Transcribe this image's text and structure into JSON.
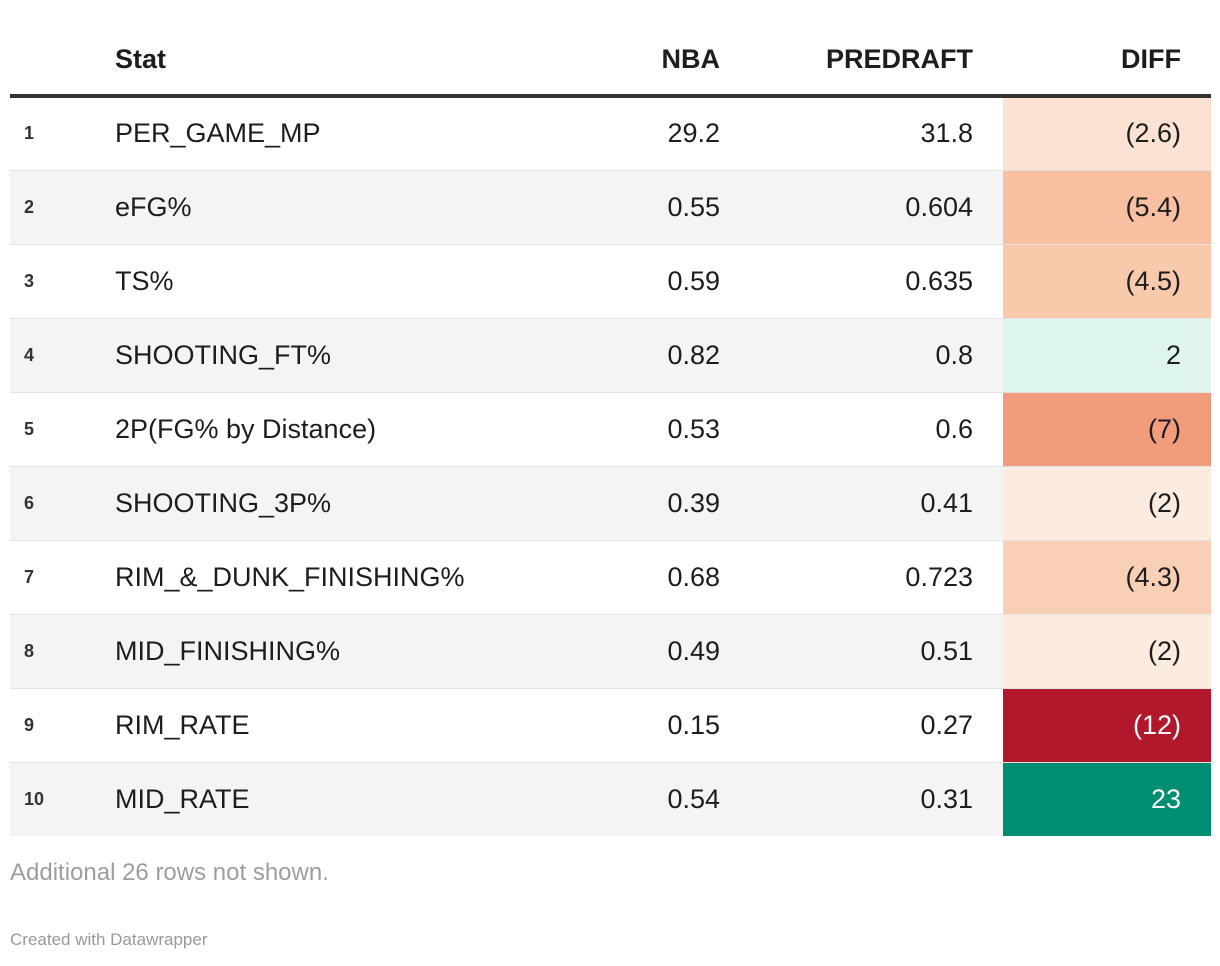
{
  "chart_data": {
    "type": "table",
    "columns": {
      "index": "",
      "stat": "Stat",
      "nba": "NBA",
      "predraft": "PREDRAFT",
      "diff": "DIFF"
    },
    "rows": [
      {
        "index": "1",
        "stat": "PER_GAME_MP",
        "nba": "29.2",
        "predraft": "31.8",
        "diff": "(2.6)",
        "diff_value": -2.6,
        "diff_bg": "#fbe2d2",
        "diff_fg": "#1d1d1d"
      },
      {
        "index": "2",
        "stat": "eFG%",
        "nba": "0.55",
        "predraft": "0.604",
        "diff": "(5.4)",
        "diff_value": -5.4,
        "diff_bg": "#f9bfa1",
        "diff_fg": "#1d1d1d"
      },
      {
        "index": "3",
        "stat": "TS%",
        "nba": "0.59",
        "predraft": "0.635",
        "diff": "(4.5)",
        "diff_value": -4.5,
        "diff_bg": "#f9c9ac",
        "diff_fg": "#1d1d1d"
      },
      {
        "index": "4",
        "stat": "SHOOTING_FT%",
        "nba": "0.82",
        "predraft": "0.8",
        "diff": "2",
        "diff_value": 2,
        "diff_bg": "#def5ed",
        "diff_fg": "#1d1d1d"
      },
      {
        "index": "5",
        "stat": "2P(FG% by Distance)",
        "nba": "0.53",
        "predraft": "0.6",
        "diff": "(7)",
        "diff_value": -7,
        "diff_bg": "#f39c7c",
        "diff_fg": "#1d1d1d"
      },
      {
        "index": "6",
        "stat": "SHOOTING_3P%",
        "nba": "0.39",
        "predraft": "0.41",
        "diff": "(2)",
        "diff_value": -2,
        "diff_bg": "#fcebdf",
        "diff_fg": "#1d1d1d"
      },
      {
        "index": "7",
        "stat": "RIM_&_DUNK_FINISHING%",
        "nba": "0.68",
        "predraft": "0.723",
        "diff": "(4.3)",
        "diff_value": -4.3,
        "diff_bg": "#f9cfb5",
        "diff_fg": "#1d1d1d"
      },
      {
        "index": "8",
        "stat": "MID_FINISHING%",
        "nba": "0.49",
        "predraft": "0.51",
        "diff": "(2)",
        "diff_value": -2,
        "diff_bg": "#fcebdf",
        "diff_fg": "#1d1d1d"
      },
      {
        "index": "9",
        "stat": "RIM_RATE",
        "nba": "0.15",
        "predraft": "0.27",
        "diff": "(12)",
        "diff_value": -12,
        "diff_bg": "#b2182b",
        "diff_fg": "#ffffff"
      },
      {
        "index": "10",
        "stat": "MID_RATE",
        "nba": "0.54",
        "predraft": "0.31",
        "diff": "23",
        "diff_value": 23,
        "diff_bg": "#008e72",
        "diff_fg": "#ffffff"
      }
    ]
  },
  "footer": {
    "note": "Additional 26 rows not shown.",
    "attribution": "Created with Datawrapper"
  },
  "colors": {
    "header_border": "#333333",
    "row_stripe": "#f4f4f4",
    "row_border": "#e2e2e2",
    "text": "#1d1d1d",
    "muted": "#9d9d9d",
    "negative_strong": "#b2182b",
    "positive_strong": "#008e72"
  }
}
